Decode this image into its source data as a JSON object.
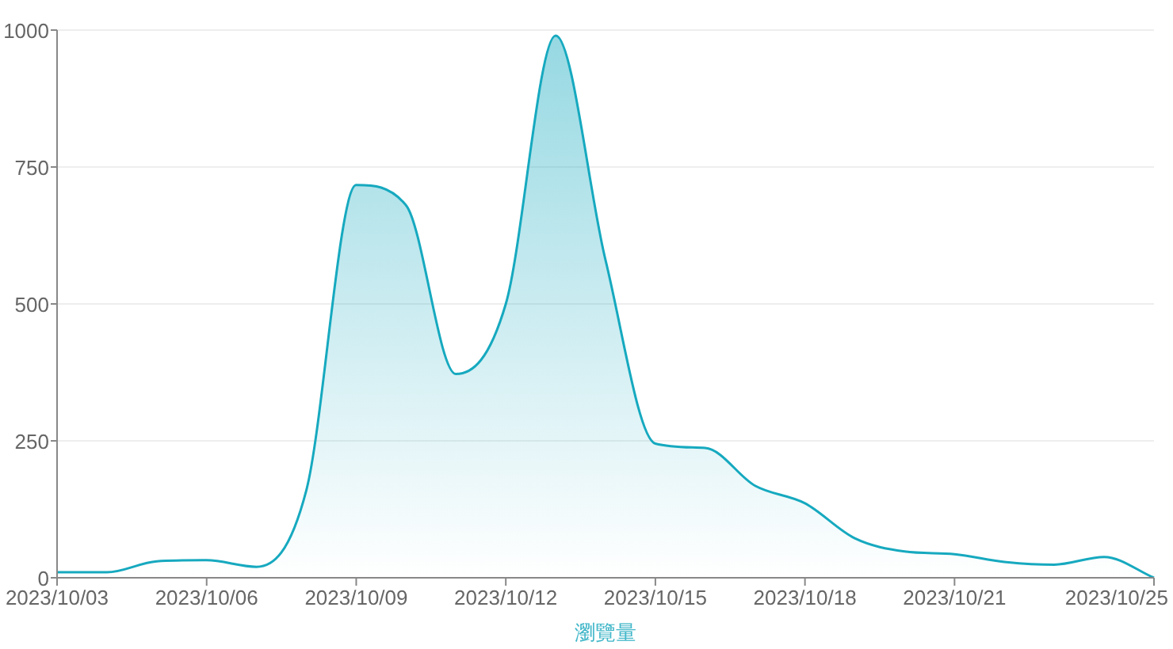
{
  "chart_data": {
    "type": "area",
    "xlabel": "瀏覽量",
    "x": [
      "2023-10-03",
      "2023-10-04",
      "2023-10-05",
      "2023-10-06",
      "2023-10-07",
      "2023-10-08",
      "2023-10-09",
      "2023-10-10",
      "2023-10-11",
      "2023-10-12",
      "2023-10-13",
      "2023-10-14",
      "2023-10-15",
      "2023-10-16",
      "2023-10-17",
      "2023-10-18",
      "2023-10-19",
      "2023-10-20",
      "2023-10-21",
      "2023-10-22",
      "2023-10-23",
      "2023-10-24",
      "2023-10-25"
    ],
    "series": [
      {
        "color": "#16a9bf",
        "values": [
          10,
          10,
          30,
          32,
          20,
          160,
          717,
          680,
          372,
          500,
          990,
          580,
          245,
          237,
          168,
          136,
          72,
          48,
          43,
          29,
          24,
          38,
          0
        ]
      }
    ],
    "xlim": [
      "2023-10-03",
      "2023-10-25"
    ],
    "xticks": [
      {
        "value": "2023-10-03",
        "label": "2023/10/03"
      },
      {
        "value": "2023-10-06",
        "label": "2023/10/06"
      },
      {
        "value": "2023-10-09",
        "label": "2023/10/09"
      },
      {
        "value": "2023-10-12",
        "label": "2023/10/12"
      },
      {
        "value": "2023-10-15",
        "label": "2023/10/15"
      },
      {
        "value": "2023-10-18",
        "label": "2023/10/18"
      },
      {
        "value": "2023-10-21",
        "label": "2023/10/21"
      },
      {
        "value": "2023-10-25",
        "label": "2023/10/25"
      }
    ],
    "ylim": [
      0,
      1000
    ],
    "yticks": [
      0,
      250,
      500,
      750,
      1000
    ],
    "grid": "y"
  }
}
